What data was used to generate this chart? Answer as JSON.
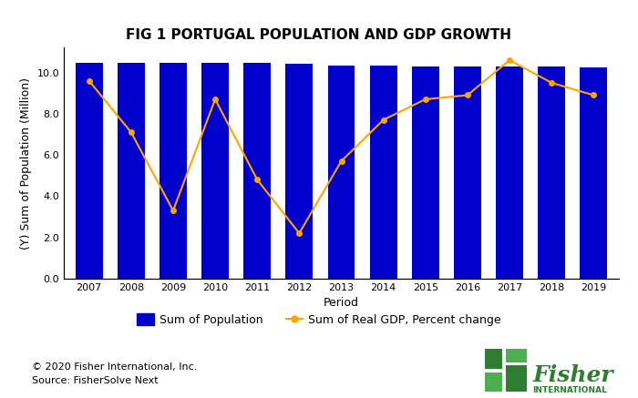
{
  "title": "FIG 1 PORTUGAL POPULATION AND GDP GROWTH",
  "xlabel": "Period",
  "ylabel": "(Y) Sum of Population (Million)",
  "years": [
    2007,
    2008,
    2009,
    2010,
    2011,
    2012,
    2013,
    2014,
    2015,
    2016,
    2017,
    2018,
    2019
  ],
  "population": [
    10.45,
    10.45,
    10.45,
    10.47,
    10.45,
    10.43,
    10.35,
    10.32,
    10.3,
    10.28,
    10.3,
    10.27,
    10.24
  ],
  "gdp": [
    9.6,
    7.1,
    3.3,
    8.7,
    4.8,
    2.2,
    5.7,
    7.7,
    8.7,
    8.9,
    10.6,
    9.5,
    8.9
  ],
  "bar_color": "#0000CC",
  "line_color": "#FFA500",
  "ylim": [
    0,
    11.2
  ],
  "yticks": [
    0.0,
    2.0,
    4.0,
    6.0,
    8.0,
    10.0
  ],
  "background_color": "#ffffff",
  "legend_pop_label": "Sum of Population",
  "legend_gdp_label": "Sum of Real GDP, Percent change",
  "footer_line1": "© 2020 Fisher International, Inc.",
  "footer_line2": "Source: FisherSolve Next",
  "title_fontsize": 11,
  "axis_fontsize": 9,
  "tick_fontsize": 8,
  "green_dark": "#2E7D32",
  "green_light": "#4CAF50"
}
